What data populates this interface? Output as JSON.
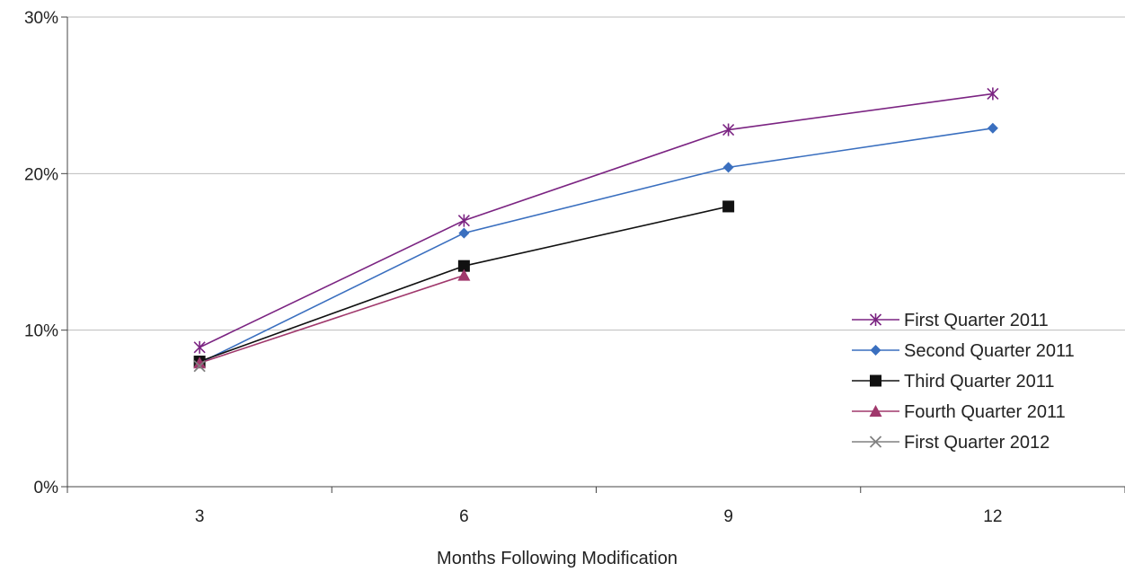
{
  "chart_data": {
    "type": "line",
    "title": "",
    "xlabel": "Months Following Modification",
    "ylabel": "",
    "x": [
      3,
      6,
      9,
      12
    ],
    "x_tick_labels": [
      "3",
      "6",
      "9",
      "12"
    ],
    "ylim": [
      0,
      30
    ],
    "y_ticks": [
      0,
      10,
      20,
      30
    ],
    "y_tick_labels": [
      "0%",
      "10%",
      "20%",
      "30%"
    ],
    "grid": "horizontal",
    "legend_position": "right",
    "series": [
      {
        "name": "First Quarter 2011",
        "values": [
          8.9,
          17.0,
          22.8,
          25.1
        ],
        "color": "#7b2482",
        "marker": "asterisk"
      },
      {
        "name": "Second Quarter 2011",
        "values": [
          7.9,
          16.2,
          20.4,
          22.9
        ],
        "color": "#3a6fbf",
        "marker": "diamond"
      },
      {
        "name": "Third Quarter 2011",
        "values": [
          8.0,
          14.1,
          17.9,
          null
        ],
        "color": "#111111",
        "marker": "square"
      },
      {
        "name": "Fourth Quarter 2011",
        "values": [
          7.9,
          13.5,
          null,
          null
        ],
        "color": "#a0386c",
        "marker": "triangle"
      },
      {
        "name": "First Quarter 2012",
        "values": [
          7.7,
          null,
          null,
          null
        ],
        "color": "#808080",
        "marker": "x"
      }
    ]
  }
}
